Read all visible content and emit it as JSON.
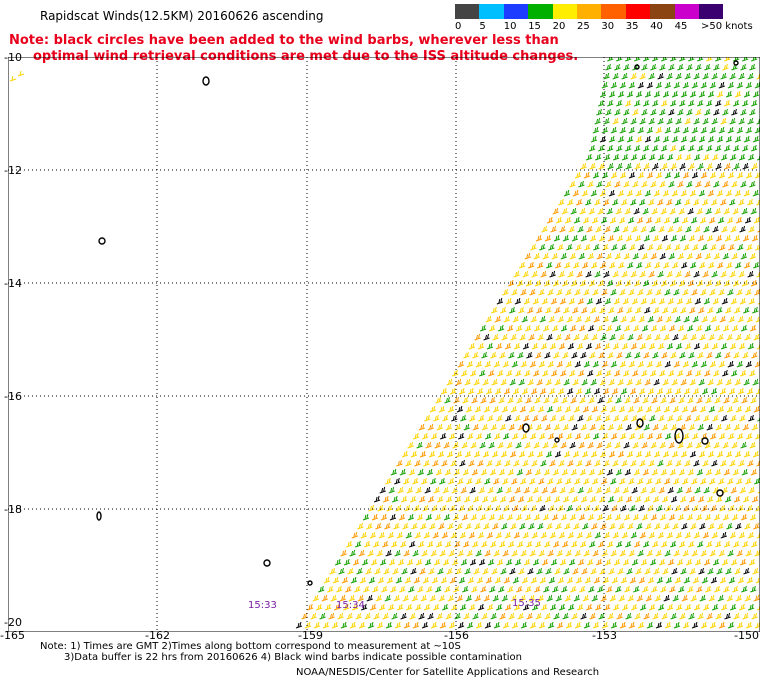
{
  "header": {
    "title": "Rapidscat Winds(12.5KM) 20160626 ascending",
    "note_line1": "Note: black circles have been added to the wind barbs, wherever less than",
    "note_line2": "optimal wind retrieval conditions are met due to the ISS altitude changes."
  },
  "legend": {
    "labels": [
      "0",
      "5",
      "10",
      "15",
      "20",
      "25",
      "30",
      "35",
      "40",
      "45",
      ">50 knots"
    ],
    "colors": [
      "#444444",
      "#00bfff",
      "#1e3cff",
      "#00b000",
      "#ffee00",
      "#ffb000",
      "#ff6000",
      "#ff0000",
      "#8b4513",
      "#cc00cc",
      "#3a0070"
    ]
  },
  "axes": {
    "latitudes": [
      "-10",
      "-12",
      "-14",
      "-16",
      "-18",
      "-20"
    ],
    "longitudes": [
      "-165",
      "-162",
      "-159",
      "-156",
      "-153",
      "-150"
    ]
  },
  "pass_times": [
    "15:33",
    "15:34",
    "15:35"
  ],
  "footnote": {
    "line1": "Note: 1) Times are GMT 2)Times along bottom correspond to measurement at ~10S",
    "line2": "3)Data buffer is 22 hrs from 20160626 4) Black wind barbs indicate possible contamination"
  },
  "credit": "NOAA/NESDIS/Center for Satellite Applications and Research"
}
